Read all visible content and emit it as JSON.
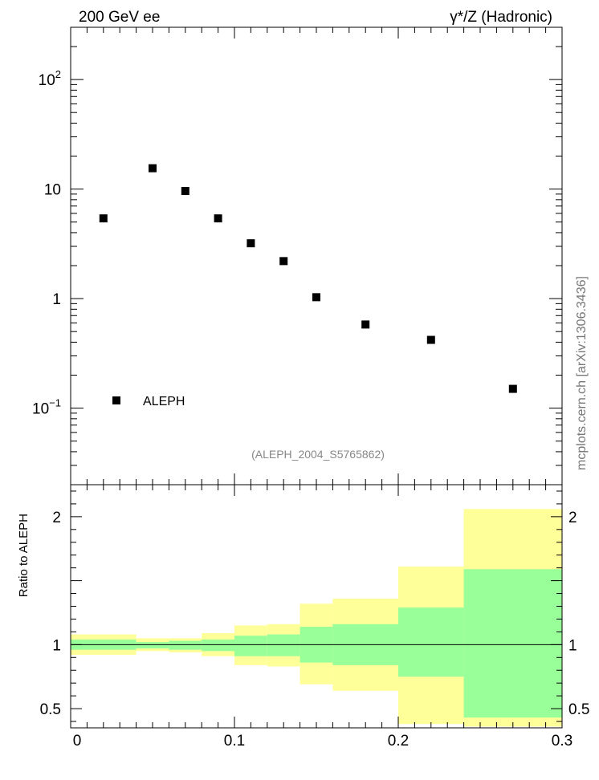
{
  "header": {
    "left_title": "200 GeV ee",
    "right_title": "γ*/Z (Hadronic)",
    "watermark": "mcplots.cern.ch [arXiv:1306.3436]",
    "analysis_id": "(ALEPH_2004_S5765862)"
  },
  "chart_data": [
    {
      "type": "scatter",
      "yscale": "log",
      "xlim": [
        0,
        0.3
      ],
      "ylim": [
        0.02,
        300
      ],
      "legend": "ALEPH",
      "legend_position": "lower-left",
      "ytick_labels": [
        "10^-1",
        "1",
        "10",
        "10^2"
      ],
      "series": [
        {
          "name": "ALEPH",
          "x": [
            0.02,
            0.05,
            0.07,
            0.09,
            0.11,
            0.13,
            0.15,
            0.18,
            0.22,
            0.27
          ],
          "y": [
            5.4,
            15.5,
            9.6,
            5.4,
            3.2,
            2.2,
            1.03,
            0.58,
            0.42,
            0.15
          ]
        }
      ]
    },
    {
      "type": "area",
      "ylabel": "Ratio to ALEPH",
      "xlim": [
        0,
        0.3
      ],
      "ylim": [
        0.35,
        2.25
      ],
      "xtick_labels": [
        "0",
        "0.1",
        "0.2",
        "0.3"
      ],
      "ytick_labels": [
        "0.5",
        "1",
        "2"
      ],
      "reference_line": 1,
      "bins": [
        {
          "lo": 0.0,
          "hi": 0.04,
          "inner": [
            0.96,
            1.04
          ],
          "outer": [
            0.92,
            1.08
          ]
        },
        {
          "lo": 0.04,
          "hi": 0.06,
          "inner": [
            0.97,
            1.02
          ],
          "outer": [
            0.95,
            1.05
          ]
        },
        {
          "lo": 0.06,
          "hi": 0.08,
          "inner": [
            0.96,
            1.03
          ],
          "outer": [
            0.94,
            1.05
          ]
        },
        {
          "lo": 0.08,
          "hi": 0.1,
          "inner": [
            0.95,
            1.04
          ],
          "outer": [
            0.91,
            1.09
          ]
        },
        {
          "lo": 0.1,
          "hi": 0.12,
          "inner": [
            0.91,
            1.07
          ],
          "outer": [
            0.84,
            1.15
          ]
        },
        {
          "lo": 0.12,
          "hi": 0.14,
          "inner": [
            0.91,
            1.08
          ],
          "outer": [
            0.83,
            1.16
          ]
        },
        {
          "lo": 0.14,
          "hi": 0.16,
          "inner": [
            0.86,
            1.14
          ],
          "outer": [
            0.69,
            1.32
          ]
        },
        {
          "lo": 0.16,
          "hi": 0.2,
          "inner": [
            0.84,
            1.16
          ],
          "outer": [
            0.64,
            1.36
          ]
        },
        {
          "lo": 0.2,
          "hi": 0.24,
          "inner": [
            0.75,
            1.29
          ],
          "outer": [
            0.38,
            1.61
          ]
        },
        {
          "lo": 0.24,
          "hi": 0.3,
          "inner": [
            0.43,
            1.59
          ],
          "outer": [
            0.36,
            2.06
          ]
        }
      ]
    }
  ],
  "colors": {
    "outer_band": "#ffff99",
    "inner_band": "#99ff99",
    "marker": "#000000"
  }
}
